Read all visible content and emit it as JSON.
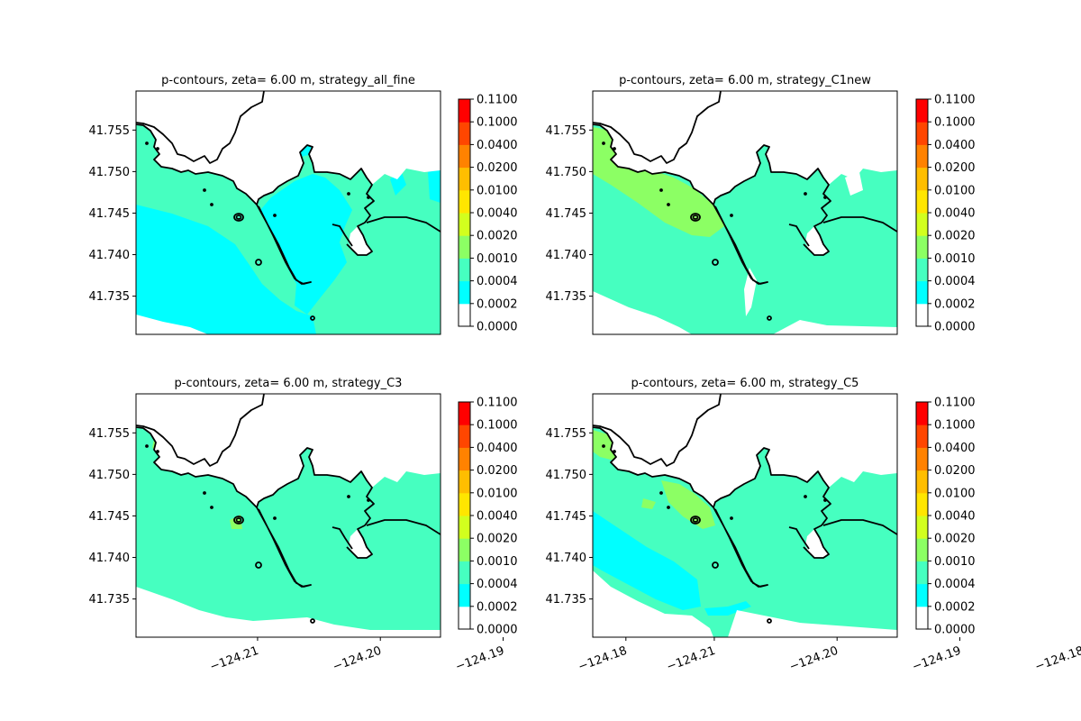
{
  "chart_data": [
    {
      "type": "contour",
      "title": "p-contours, zeta= 6.00 m, strategy_all_fine",
      "xlim": [
        -124.2199,
        -124.1951
      ],
      "ylim": [
        41.7304,
        41.7597
      ],
      "xticks": [],
      "yticks": [
        "41.735",
        "41.740",
        "41.745",
        "41.750",
        "41.755"
      ],
      "colorbar": {
        "levels": [
          "0.0000",
          "0.0002",
          "0.0004",
          "0.0010",
          "0.0020",
          "0.0040",
          "0.0100",
          "0.0200",
          "0.0400",
          "0.1000",
          "0.1100"
        ],
        "colors": [
          "#ffffff",
          "#00ffff",
          "#46ffc0",
          "#8cff64",
          "#d2ff1e",
          "#ffe600",
          "#ffbe00",
          "#ff8200",
          "#ff4600",
          "#ff0000"
        ]
      },
      "fill": {
        "background_level": "0.0004-0.0010",
        "regions": [
          "0.0002-0.0004 (cyan) over south-west sea and harbor basin"
        ]
      }
    },
    {
      "type": "contour",
      "title": "p-contours, zeta= 6.00 m, strategy_C1new",
      "xlim": [
        -124.2199,
        -124.1951
      ],
      "ylim": [
        41.7304,
        41.7597
      ],
      "xticks": [],
      "yticks": [
        "41.735",
        "41.740",
        "41.745",
        "41.750",
        "41.755"
      ],
      "colorbar": {
        "levels": [
          "0.0000",
          "0.0002",
          "0.0004",
          "0.0010",
          "0.0020",
          "0.0040",
          "0.0100",
          "0.0200",
          "0.0400",
          "0.1000",
          "0.1100"
        ],
        "colors": [
          "#ffffff",
          "#00ffff",
          "#46ffc0",
          "#8cff64",
          "#d2ff1e",
          "#ffe600",
          "#ffbe00",
          "#ff8200",
          "#ff4600",
          "#ff0000"
        ]
      },
      "fill": {
        "background_level": "0.0004-0.0010",
        "regions": [
          "0.0010-0.0020 (light green) band along north-west shore"
        ]
      }
    },
    {
      "type": "contour",
      "title": "p-contours, zeta= 6.00 m, strategy_C3",
      "xlim": [
        -124.2199,
        -124.1951
      ],
      "ylim": [
        41.7304,
        41.7597
      ],
      "xticks": [
        "−124.21",
        "−124.20",
        "−124.19",
        "−124.18"
      ],
      "yticks": [
        "41.735",
        "41.740",
        "41.745",
        "41.750",
        "41.755"
      ],
      "colorbar": {
        "levels": [
          "0.0000",
          "0.0002",
          "0.0004",
          "0.0010",
          "0.0020",
          "0.0040",
          "0.0100",
          "0.0200",
          "0.0400",
          "0.1000",
          "0.1100"
        ],
        "colors": [
          "#ffffff",
          "#00ffff",
          "#46ffc0",
          "#8cff64",
          "#d2ff1e",
          "#ffe600",
          "#ffbe00",
          "#ff8200",
          "#ff4600",
          "#ff0000"
        ]
      },
      "fill": {
        "background_level": "0.0004-0.0010",
        "regions": [
          "0.0010-0.0020 small patch near jetty head"
        ]
      }
    },
    {
      "type": "contour",
      "title": "p-contours, zeta= 6.00 m, strategy_C5",
      "xlim": [
        -124.2199,
        -124.1951
      ],
      "ylim": [
        41.7304,
        41.7597
      ],
      "xticks": [
        "−124.21",
        "−124.20",
        "−124.19",
        "−124.18"
      ],
      "yticks": [
        "41.735",
        "41.740",
        "41.745",
        "41.750",
        "41.755"
      ],
      "colorbar": {
        "levels": [
          "0.0000",
          "0.0002",
          "0.0004",
          "0.0010",
          "0.0020",
          "0.0040",
          "0.0100",
          "0.0200",
          "0.0400",
          "0.1000",
          "0.1100"
        ],
        "colors": [
          "#ffffff",
          "#00ffff",
          "#46ffc0",
          "#8cff64",
          "#d2ff1e",
          "#ffe600",
          "#ffbe00",
          "#ff8200",
          "#ff4600",
          "#ff0000"
        ]
      },
      "fill": {
        "background_level": "0.0004-0.0010",
        "regions": [
          "0.0002-0.0004 (cyan) band south-west",
          "0.0010-0.0020 patches near jetty"
        ]
      }
    }
  ]
}
